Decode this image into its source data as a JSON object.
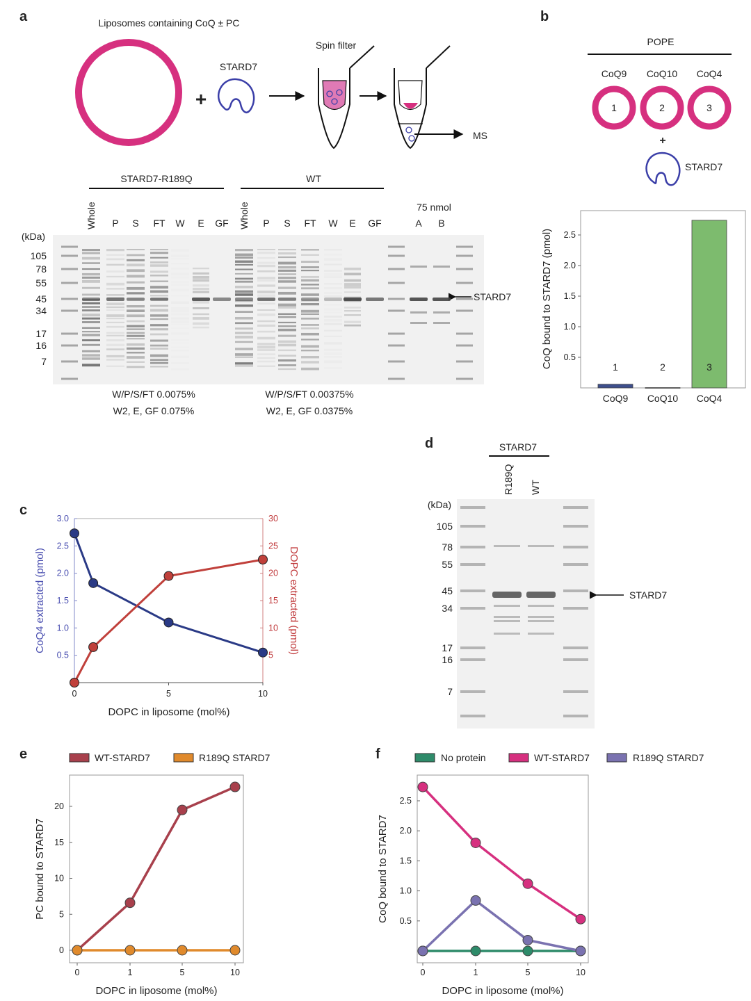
{
  "panel_labels": {
    "a": "a",
    "b": "b",
    "c": "c",
    "d": "d",
    "e": "e",
    "f": "f"
  },
  "panel_a": {
    "title": "Liposomes containing CoQ ± PC",
    "plus": "+",
    "stard7_label": "STARD7",
    "spin_filter": "Spin filter",
    "ms": "MS",
    "groups": [
      {
        "label": "STARD7-R189Q",
        "lanes": [
          "Whole",
          "P",
          "S",
          "FT",
          "W",
          "E",
          "GF"
        ]
      },
      {
        "label": "WT",
        "lanes": [
          "Whole",
          "P",
          "S",
          "FT",
          "W",
          "E",
          "GF"
        ]
      }
    ],
    "std_label": "75 nmol",
    "std_lanes": [
      "A",
      "B"
    ],
    "kda_label": "(kDa)",
    "markers": [
      "105",
      "78",
      "55",
      "45",
      "34",
      "17",
      "16",
      "7"
    ],
    "band_label": "STARD7",
    "captions": [
      [
        "W/P/S/FT 0.0075%",
        "W2, E, GF 0.075%"
      ],
      [
        "W/P/S/FT 0.00375%",
        "W2, E, GF 0.0375%"
      ]
    ]
  },
  "panel_b": {
    "header": "POPE",
    "coq_labels": [
      "CoQ9",
      "CoQ10",
      "CoQ4"
    ],
    "ring_numbers": [
      "1",
      "2",
      "3"
    ],
    "plus": "+",
    "stard7_label": "STARD7"
  },
  "panel_d": {
    "header": "STARD7",
    "lanes": [
      "R189Q",
      "WT"
    ],
    "kda_label": "(kDa)",
    "markers": [
      "105",
      "78",
      "55",
      "45",
      "34",
      "17",
      "16",
      "7"
    ],
    "band_label": "STARD7"
  },
  "colors": {
    "liposome": "#d6307f",
    "stard7": "#3b3fa8",
    "coq9_bar": "#3d4f8c",
    "coq4_bar": "#7dbb6e",
    "c_coq4": "#2a3a86",
    "c_dopc": "#c0403b",
    "e_wt": "#a8404c",
    "e_r189q": "#e08a2c",
    "f_none": "#2e8b6a",
    "f_wt": "#d6307f",
    "f_r189q": "#7a72b0"
  },
  "chart_data": [
    {
      "panel": "b",
      "type": "bar",
      "categories": [
        "CoQ9",
        "CoQ10",
        "CoQ4"
      ],
      "bar_labels": [
        "1",
        "2",
        "3"
      ],
      "values": [
        0.06,
        0.005,
        2.74
      ],
      "ylabel": "CoQ bound to STARD7 (pmol)",
      "yticks": [
        "0.5",
        "1.0",
        "1.5",
        "2.0",
        "2.5"
      ],
      "ylim": [
        0,
        2.9
      ]
    },
    {
      "panel": "c",
      "type": "line",
      "x": [
        0,
        1,
        5,
        10
      ],
      "xticks": [
        "0",
        "5",
        "10"
      ],
      "xlabel": "DOPC in liposome (mol%)",
      "series": [
        {
          "axis": "left",
          "values": [
            2.73,
            1.82,
            1.1,
            0.55
          ]
        },
        {
          "axis": "right",
          "values": [
            0,
            6.5,
            19.5,
            22.5
          ]
        }
      ],
      "ylabel_left": "CoQ4 extracted (pmol)",
      "ylabel_right": "DOPC extracted (pmol)",
      "yticks_left": [
        "0.5",
        "1.0",
        "1.5",
        "2.0",
        "2.5",
        "3.0"
      ],
      "yticks_right": [
        "5",
        "10",
        "15",
        "20",
        "25",
        "30"
      ],
      "ylim_left": [
        0,
        3.0
      ],
      "ylim_right": [
        0,
        30
      ],
      "xlim": [
        0,
        10
      ]
    },
    {
      "panel": "e",
      "type": "line",
      "categories": [
        "0",
        "1",
        "5",
        "10"
      ],
      "xlabel": "DOPC in liposome (mol%)",
      "ylabel": "PC bound to STARD7",
      "yticks": [
        "0",
        "5",
        "10",
        "15",
        "20"
      ],
      "ylim": [
        -1.5,
        24.5
      ],
      "legend": "top",
      "series": [
        {
          "name": "WT-STARD7",
          "values": [
            0,
            6.6,
            19.5,
            22.7
          ]
        },
        {
          "name": "R189Q STARD7",
          "values": [
            0,
            0,
            0,
            0
          ]
        }
      ]
    },
    {
      "panel": "f",
      "type": "line",
      "categories": [
        "0",
        "1",
        "5",
        "10"
      ],
      "xlabel": "DOPC in liposome (mol%)",
      "ylabel": "CoQ bound to STARD7",
      "yticks": [
        "0.5",
        "1.0",
        "1.5",
        "2.0",
        "2.5"
      ],
      "ylim": [
        -0.2,
        2.93
      ],
      "legend": "top",
      "series": [
        {
          "name": "No protein",
          "values": [
            0,
            0,
            0,
            0
          ]
        },
        {
          "name": "WT-STARD7",
          "values": [
            2.73,
            1.8,
            1.12,
            0.53
          ]
        },
        {
          "name": "R189Q STARD7",
          "values": [
            0,
            0.84,
            0.18,
            0
          ]
        }
      ]
    }
  ]
}
